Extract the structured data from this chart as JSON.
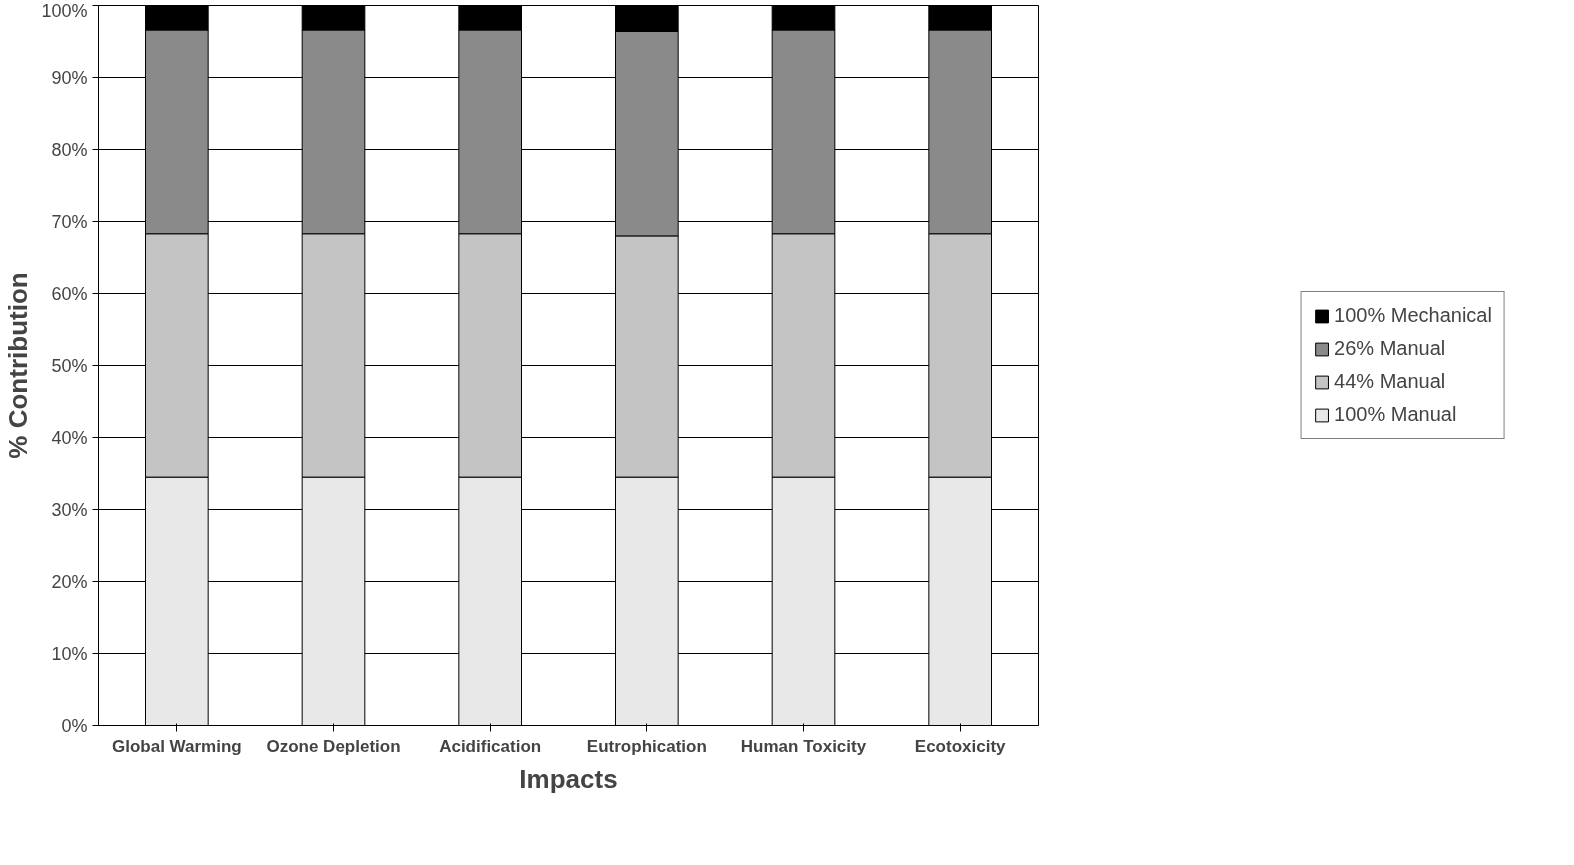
{
  "chart_data": {
    "type": "bar",
    "stacked": true,
    "xlabel": "Impacts",
    "ylabel": "% Contribution",
    "categories": [
      "Global Warming",
      "Ozone Depletion",
      "Acidification",
      "Eutrophication",
      "Human Toxicity",
      "Ecotoxicity"
    ],
    "series": [
      {
        "name": "100% Manual",
        "color": "#e8e8e8",
        "values": [
          34.5,
          34.5,
          34.5,
          34.5,
          34.5,
          34.5
        ]
      },
      {
        "name": "44% Manual",
        "color": "#c4c4c4",
        "values": [
          33.8,
          33.8,
          33.8,
          33.5,
          33.8,
          33.8
        ]
      },
      {
        "name": "26% Manual",
        "color": "#8a8a8a",
        "values": [
          28.3,
          28.3,
          28.3,
          28.4,
          28.3,
          28.3
        ]
      },
      {
        "name": "100% Mechanical",
        "color": "#000000",
        "values": [
          3.4,
          3.4,
          3.4,
          3.6,
          3.4,
          3.4
        ]
      }
    ],
    "ylim": [
      0,
      100
    ],
    "yticks": [
      {
        "value": 0,
        "label": "0%"
      },
      {
        "value": 10,
        "label": "10%"
      },
      {
        "value": 20,
        "label": "20%"
      },
      {
        "value": 30,
        "label": "30%"
      },
      {
        "value": 40,
        "label": "40%"
      },
      {
        "value": 50,
        "label": "50%"
      },
      {
        "value": 60,
        "label": "60%"
      },
      {
        "value": 70,
        "label": "70%"
      },
      {
        "value": 80,
        "label": "80%"
      },
      {
        "value": 90,
        "label": "90%"
      },
      {
        "value": 100,
        "label": "100%"
      }
    ],
    "grid": "y",
    "legend": "right"
  }
}
